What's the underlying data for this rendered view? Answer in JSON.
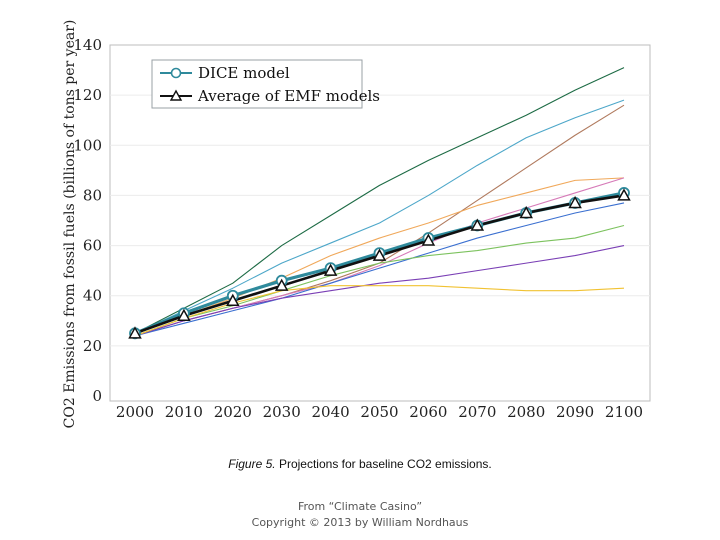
{
  "chart_data": {
    "type": "line",
    "title": "",
    "xlabel": "",
    "ylabel": "CO2 Emissions from fossil fuels (billions of tons per year)",
    "xlim": [
      2000,
      2100
    ],
    "ylim": [
      0,
      140
    ],
    "x": [
      2000,
      2010,
      2020,
      2030,
      2040,
      2050,
      2060,
      2070,
      2080,
      2090,
      2100
    ],
    "x_ticks": [
      "2000",
      "2010",
      "2020",
      "2030",
      "2040",
      "2050",
      "2060",
      "2070",
      "2080",
      "2090",
      "2100"
    ],
    "y_ticks": [
      "0",
      "20",
      "40",
      "60",
      "80",
      "100",
      "120",
      "140"
    ],
    "legend": {
      "position": "top-left",
      "entries": [
        {
          "label": "DICE model",
          "marker": "circle",
          "color": "#2f8a9c"
        },
        {
          "label": "Average of EMF models",
          "marker": "triangle",
          "color": "#111111"
        }
      ]
    },
    "series": [
      {
        "name": "DICE model",
        "role": "main",
        "marker": "circle",
        "color": "#2f8a9c",
        "values": [
          25,
          33,
          40,
          46,
          51,
          57,
          63,
          68,
          73,
          77,
          81
        ]
      },
      {
        "name": "Average of EMF models",
        "role": "main",
        "marker": "triangle",
        "color": "#111111",
        "values": [
          25,
          32,
          38,
          44,
          50,
          56,
          62,
          68,
          73,
          77,
          80
        ]
      },
      {
        "name": "EMF model (dark green)",
        "role": "model",
        "color": "#1d6b45",
        "values": [
          25,
          35,
          45,
          60,
          72,
          84,
          94,
          103,
          112,
          122,
          131
        ]
      },
      {
        "name": "EMF model (teal)",
        "role": "model",
        "color": "#4da7c9",
        "values": [
          25,
          34,
          43,
          53,
          61,
          69,
          80,
          92,
          103,
          111,
          118
        ]
      },
      {
        "name": "EMF model (brown)",
        "role": "model",
        "color": "#b07a5e",
        "values": [
          24,
          30,
          35,
          40,
          46,
          53,
          65,
          78,
          91,
          104,
          116
        ]
      },
      {
        "name": "EMF model (orange)",
        "role": "model",
        "color": "#f0a85a",
        "values": [
          25,
          32,
          39,
          47,
          56,
          63,
          69,
          76,
          81,
          86,
          87
        ]
      },
      {
        "name": "EMF model (pink)",
        "role": "model",
        "color": "#d67ab8",
        "values": [
          24,
          30,
          35,
          40,
          45,
          52,
          61,
          69,
          75,
          81,
          87
        ]
      },
      {
        "name": "EMF model (blue)",
        "role": "model",
        "color": "#3a6fd0",
        "values": [
          24,
          29,
          34,
          39,
          45,
          51,
          57,
          63,
          68,
          73,
          77
        ]
      },
      {
        "name": "EMF model (light green)",
        "role": "model",
        "color": "#7cc25e",
        "values": [
          24,
          31,
          36,
          42,
          48,
          53,
          56,
          58,
          61,
          63,
          68
        ]
      },
      {
        "name": "EMF model (purple)",
        "role": "model",
        "color": "#7a3fb5",
        "values": [
          24,
          30,
          35,
          39,
          42,
          45,
          47,
          50,
          53,
          56,
          60
        ]
      },
      {
        "name": "EMF model (gold)",
        "role": "model",
        "color": "#f1c232",
        "values": [
          24,
          31,
          37,
          42,
          44,
          44,
          44,
          43,
          42,
          42,
          43
        ]
      }
    ]
  },
  "caption": {
    "figure_label": "Figure 5.",
    "text": " Projections for baseline CO2 emissions."
  },
  "credit": {
    "line1": "From “Climate Casino”",
    "line2": "Copyright © 2013 by William Nordhaus"
  }
}
